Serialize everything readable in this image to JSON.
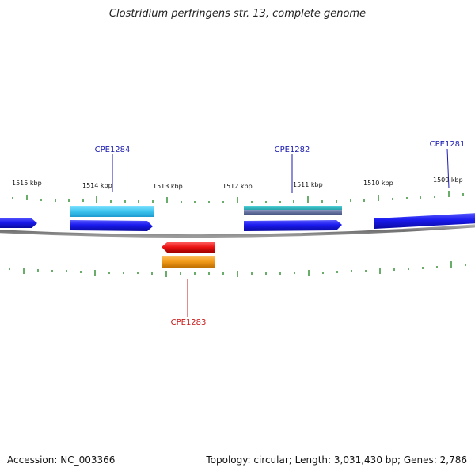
{
  "title": "Clostridium perfringens str. 13, complete genome",
  "footer": {
    "accession": "Accession: NC_003366",
    "summary": "Topology: circular; Length: 3,031,430 bp; Genes: 2,786"
  },
  "scale_labels": [
    "1515 kbp",
    "1514 kbp",
    "1513 kbp",
    "1512 kbp",
    "1511 kbp",
    "1510 kbp",
    "1509 kbp"
  ],
  "gene_labels": {
    "cpe1284": "CPE1284",
    "cpe1282": "CPE1282",
    "cpe1281": "CPE1281",
    "cpe1283": "CPE1283"
  },
  "colors": {
    "forward_label": "#1a1ab0",
    "reverse_label": "#c81414",
    "cds_blue": "#1414e0",
    "gene_cyan": "#3fc8ee",
    "gene_teal": "#2ab3b8",
    "gene_slate": "#5a6a9a",
    "cds_red": "#e01414",
    "gene_orange": "#f0a020",
    "tick": "#2a8a2a",
    "backbone": "#888888"
  }
}
